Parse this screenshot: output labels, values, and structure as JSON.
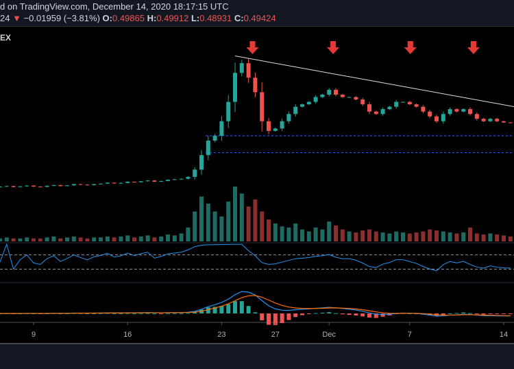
{
  "header": {
    "line1": "d on TradingView.com, December 14, 2020 18:17:15 UTC",
    "last_fragment": "24",
    "change_arrow": "▼",
    "change": "−0.01959 (−3.81%)",
    "o_label": "O:",
    "o": "0.49865",
    "h_label": "H:",
    "h": "0.49912",
    "l_label": "L:",
    "l": "0.48931",
    "c_label": "C:",
    "c": "0.49424"
  },
  "symbol_fragment": "EX",
  "colors": {
    "up": "#26a69a",
    "down": "#ef5350",
    "rsi": "#2196f3",
    "macd": "#2196f3",
    "signal": "#ff6d00",
    "arrow": "#e53935",
    "level": "#2962ff"
  },
  "chart_data": {
    "type": "candlestick",
    "interval_days": 0.5,
    "start_day_of_november": 6.5,
    "closes": [
      0.23,
      0.232,
      0.228,
      0.231,
      0.234,
      0.23,
      0.229,
      0.233,
      0.236,
      0.232,
      0.235,
      0.24,
      0.238,
      0.236,
      0.24,
      0.242,
      0.246,
      0.243,
      0.245,
      0.25,
      0.248,
      0.252,
      0.255,
      0.25,
      0.253,
      0.258,
      0.26,
      0.262,
      0.27,
      0.3,
      0.36,
      0.42,
      0.44,
      0.5,
      0.58,
      0.7,
      0.74,
      0.68,
      0.62,
      0.5,
      0.46,
      0.47,
      0.5,
      0.53,
      0.56,
      0.57,
      0.58,
      0.6,
      0.61,
      0.63,
      0.61,
      0.6,
      0.6,
      0.59,
      0.57,
      0.54,
      0.53,
      0.55,
      0.56,
      0.58,
      0.58,
      0.57,
      0.56,
      0.54,
      0.52,
      0.5,
      0.53,
      0.55,
      0.54,
      0.55,
      0.53,
      0.51,
      0.5,
      0.51,
      0.5,
      0.495,
      0.494
    ],
    "volume": [
      3,
      4,
      3,
      3,
      4,
      3,
      3,
      4,
      5,
      3,
      4,
      5,
      4,
      3,
      4,
      4,
      5,
      4,
      5,
      6,
      4,
      5,
      6,
      4,
      5,
      7,
      6,
      8,
      14,
      30,
      45,
      38,
      30,
      25,
      40,
      55,
      48,
      35,
      42,
      30,
      22,
      18,
      15,
      14,
      18,
      12,
      10,
      14,
      12,
      20,
      16,
      12,
      10,
      9,
      11,
      12,
      10,
      9,
      8,
      10,
      9,
      8,
      9,
      10,
      12,
      11,
      10,
      9,
      8,
      9,
      14,
      8,
      7,
      8,
      7,
      6,
      5
    ],
    "x_ticks": [
      {
        "label": "9",
        "day": 9
      },
      {
        "label": "16",
        "day": 16
      },
      {
        "label": "23",
        "day": 23
      },
      {
        "label": "27",
        "day": 27
      },
      {
        "label": "Dec",
        "day": 31
      },
      {
        "label": "7",
        "day": 37
      },
      {
        "label": "14",
        "day": 44
      }
    ],
    "price_range": [
      0.1,
      0.9
    ],
    "rsi_levels": [
      70,
      30
    ],
    "trendline": {
      "start": {
        "day": 24,
        "price": 0.77
      },
      "end": {
        "day": 44.8,
        "price": 0.56
      }
    },
    "arrows_days": [
      25.3,
      31.3,
      37.05,
      41.75
    ],
    "support_levels": [
      0.44,
      0.37
    ]
  }
}
